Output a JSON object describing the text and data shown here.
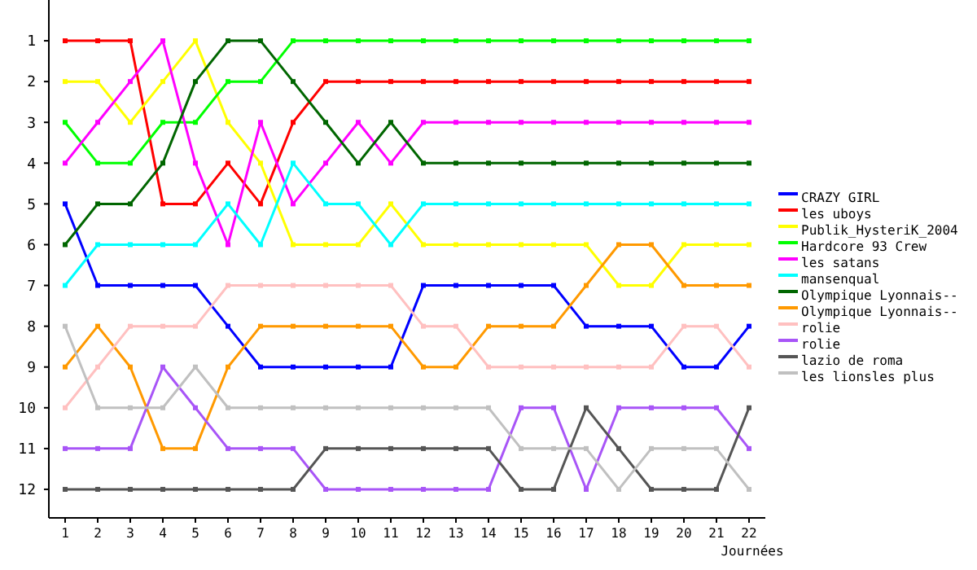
{
  "chart_data": {
    "type": "line",
    "xlabel": "Journées",
    "x": [
      1,
      2,
      3,
      4,
      5,
      6,
      7,
      8,
      9,
      10,
      11,
      12,
      13,
      14,
      15,
      16,
      17,
      18,
      19,
      20,
      21,
      22
    ],
    "xlim": [
      0.5,
      22.5
    ],
    "xticks": [
      1,
      2,
      3,
      4,
      5,
      6,
      7,
      8,
      9,
      10,
      11,
      12,
      13,
      14,
      15,
      16,
      17,
      18,
      19,
      20,
      21,
      22
    ],
    "ylim": [
      12.7,
      0
    ],
    "yticks": [
      1,
      2,
      3,
      4,
      5,
      6,
      7,
      8,
      9,
      10,
      11,
      12
    ],
    "grid": false,
    "legend": "right",
    "marker": "square",
    "line_style": "solid",
    "series": [
      {
        "name": "CRAZY GIRL",
        "color": "#0000ff",
        "values": [
          5,
          7,
          7,
          7,
          7,
          8,
          9,
          9,
          9,
          9,
          9,
          7,
          7,
          7,
          7,
          7,
          8,
          8,
          8,
          9,
          9,
          8
        ]
      },
      {
        "name": "les uboys",
        "color": "#ff0000",
        "values": [
          1,
          1,
          1,
          5,
          5,
          4,
          5,
          3,
          2,
          2,
          2,
          2,
          2,
          2,
          2,
          2,
          2,
          2,
          2,
          2,
          2,
          2
        ]
      },
      {
        "name": "Publik_HysteriK_2004",
        "color": "#ffff00",
        "values": [
          2,
          2,
          3,
          2,
          1,
          3,
          4,
          6,
          6,
          6,
          5,
          6,
          6,
          6,
          6,
          6,
          6,
          7,
          7,
          6,
          6,
          6
        ]
      },
      {
        "name": "Hardcore 93 Crew",
        "color": "#00ff00",
        "values": [
          3,
          4,
          4,
          3,
          3,
          2,
          2,
          1,
          1,
          1,
          1,
          1,
          1,
          1,
          1,
          1,
          1,
          1,
          1,
          1,
          1,
          1
        ]
      },
      {
        "name": "les satans",
        "color": "#ff00ff",
        "values": [
          4,
          3,
          2,
          1,
          4,
          6,
          3,
          5,
          4,
          3,
          4,
          3,
          3,
          3,
          3,
          3,
          3,
          3,
          3,
          3,
          3,
          3
        ]
      },
      {
        "name": "mansenqual",
        "color": "#00ffff",
        "values": [
          7,
          6,
          6,
          6,
          6,
          5,
          6,
          4,
          5,
          5,
          6,
          5,
          5,
          5,
          5,
          5,
          5,
          5,
          5,
          5,
          5,
          5
        ]
      },
      {
        "name": "Olympique Lyonnais--",
        "color": "#006600",
        "values": [
          6,
          5,
          5,
          4,
          2,
          1,
          1,
          2,
          3,
          4,
          3,
          4,
          4,
          4,
          4,
          4,
          4,
          4,
          4,
          4,
          4,
          4
        ]
      },
      {
        "name": "Olympique Lyonnais--",
        "color": "#ff9900",
        "values": [
          9,
          8,
          9,
          11,
          11,
          9,
          8,
          8,
          8,
          8,
          8,
          9,
          9,
          8,
          8,
          8,
          7,
          6,
          6,
          7,
          7,
          7
        ]
      },
      {
        "name": "rolie",
        "color": "#ffc0c0",
        "values": [
          10,
          9,
          8,
          8,
          8,
          7,
          7,
          7,
          7,
          7,
          7,
          8,
          8,
          9,
          9,
          9,
          9,
          9,
          9,
          8,
          8,
          9
        ]
      },
      {
        "name": "rolie",
        "color": "#a855f7",
        "values": [
          11,
          11,
          11,
          9,
          10,
          11,
          11,
          11,
          12,
          12,
          12,
          12,
          12,
          12,
          10,
          10,
          12,
          10,
          10,
          10,
          10,
          11
        ]
      },
      {
        "name": "lazio de roma",
        "color": "#555555",
        "values": [
          12,
          12,
          12,
          12,
          12,
          12,
          12,
          12,
          11,
          11,
          11,
          11,
          11,
          11,
          12,
          12,
          10,
          11,
          12,
          12,
          12,
          10
        ]
      },
      {
        "name": "les lionsles plus",
        "color": "#c0c0c0",
        "values": [
          8,
          10,
          10,
          10,
          9,
          10,
          10,
          10,
          10,
          10,
          10,
          10,
          10,
          10,
          11,
          11,
          11,
          12,
          11,
          11,
          11,
          12
        ]
      }
    ]
  }
}
